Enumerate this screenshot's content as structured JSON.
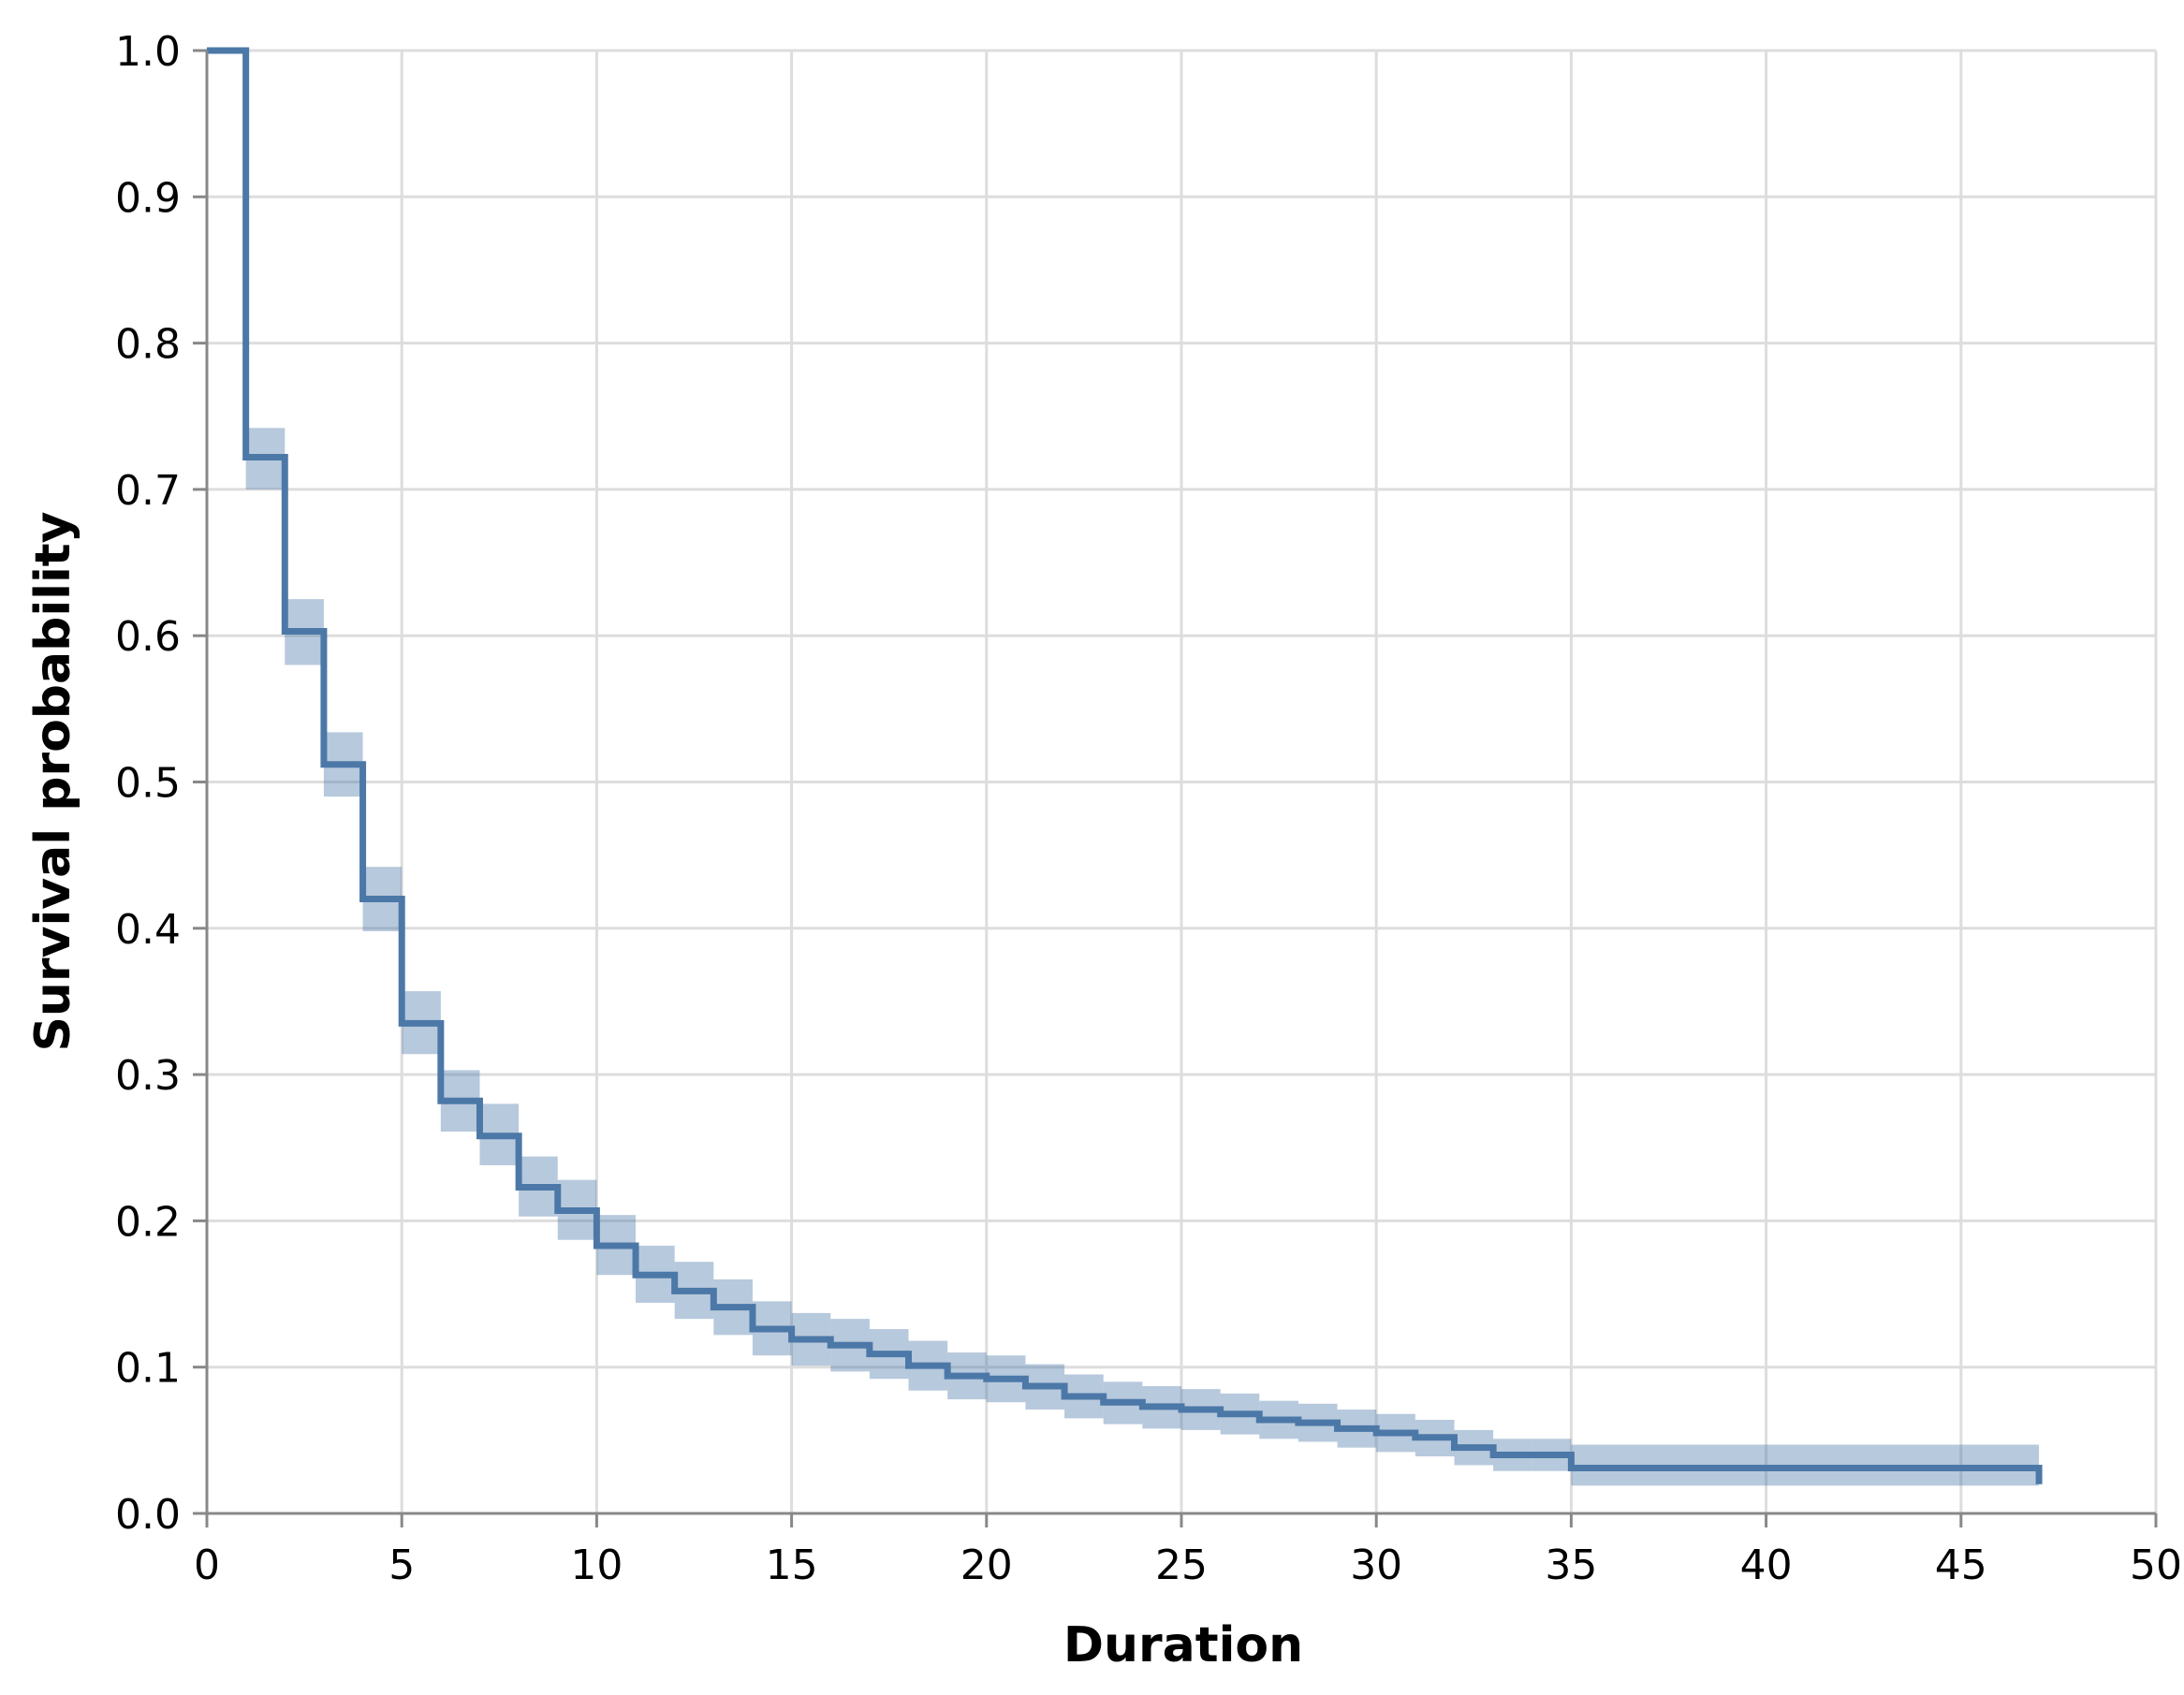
{
  "chart_data": {
    "type": "line",
    "title": "",
    "xlabel": "Duration",
    "ylabel": "Survival probability",
    "xlim": [
      0,
      50
    ],
    "ylim": [
      0,
      1
    ],
    "x_ticks": [
      "0",
      "5",
      "10",
      "15",
      "20",
      "25",
      "30",
      "35",
      "40",
      "45",
      "50"
    ],
    "y_ticks": [
      "0.0",
      "0.1",
      "0.2",
      "0.3",
      "0.4",
      "0.5",
      "0.6",
      "0.7",
      "0.8",
      "0.9",
      "1.0"
    ],
    "grid": true,
    "line_color": "#4c78a8",
    "band_color": "#4c78a8",
    "series": [
      {
        "step": "post",
        "x": [
          0,
          1,
          2,
          3,
          4,
          5,
          6,
          7,
          8,
          9,
          10,
          11,
          12,
          13,
          14,
          15,
          16,
          17,
          18,
          19,
          20,
          21,
          22,
          23,
          24,
          25,
          26,
          27,
          28,
          29,
          30,
          31,
          32,
          33,
          34,
          35,
          47
        ],
        "y": [
          1.0,
          0.722,
          0.603,
          0.512,
          0.42,
          0.335,
          0.282,
          0.258,
          0.223,
          0.207,
          0.183,
          0.163,
          0.152,
          0.141,
          0.126,
          0.119,
          0.115,
          0.109,
          0.101,
          0.094,
          0.092,
          0.087,
          0.08,
          0.076,
          0.073,
          0.071,
          0.068,
          0.064,
          0.062,
          0.058,
          0.055,
          0.052,
          0.045,
          0.04,
          0.04,
          0.031,
          0.02
        ],
        "lower": [
          1.0,
          0.7,
          0.58,
          0.49,
          0.398,
          0.314,
          0.261,
          0.238,
          0.203,
          0.187,
          0.163,
          0.144,
          0.133,
          0.122,
          0.108,
          0.101,
          0.097,
          0.092,
          0.084,
          0.078,
          0.076,
          0.071,
          0.065,
          0.061,
          0.058,
          0.057,
          0.054,
          0.051,
          0.049,
          0.045,
          0.042,
          0.039,
          0.033,
          0.029,
          0.029,
          0.019,
          0.019
        ],
        "upper": [
          1.0,
          0.742,
          0.625,
          0.534,
          0.442,
          0.357,
          0.303,
          0.28,
          0.244,
          0.228,
          0.204,
          0.183,
          0.172,
          0.16,
          0.145,
          0.137,
          0.133,
          0.126,
          0.118,
          0.11,
          0.108,
          0.102,
          0.095,
          0.09,
          0.087,
          0.085,
          0.082,
          0.077,
          0.075,
          0.071,
          0.068,
          0.064,
          0.057,
          0.051,
          0.051,
          0.047,
          0.047
        ]
      }
    ]
  }
}
